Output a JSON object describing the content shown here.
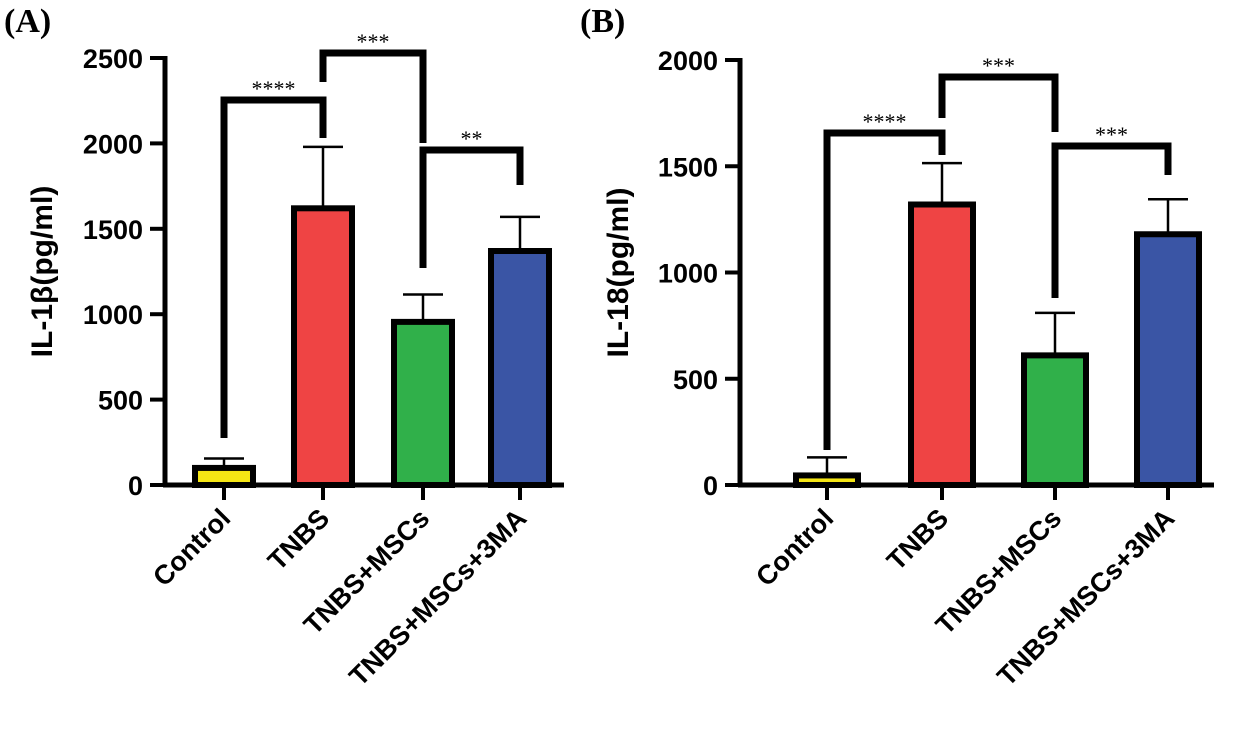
{
  "colors": {
    "Control": "#f5e614",
    "TNBS": "#ef4444",
    "TNBS+MSCs": "#30b04a",
    "TNBS+MSCs+3MA": "#3a55a5"
  },
  "chart_data": [
    {
      "type": "bar",
      "panel_label": "(A)",
      "ylabel": "IL-1β(pg/ml)",
      "categories": [
        "Control",
        "TNBS",
        "TNBS+MSCs",
        "TNBS+MSCs+3MA"
      ],
      "values": [
        100,
        1620,
        955,
        1370
      ],
      "errors": [
        55,
        360,
        160,
        200
      ],
      "ylim": [
        0,
        2500
      ],
      "yticks": [
        0,
        500,
        1000,
        1500,
        2000,
        2500
      ],
      "grid": false,
      "significance": [
        {
          "from": 0,
          "to": 1,
          "label": "****"
        },
        {
          "from": 1,
          "to": 2,
          "label": "***"
        },
        {
          "from": 2,
          "to": 3,
          "label": "**"
        }
      ]
    },
    {
      "type": "bar",
      "panel_label": "(B)",
      "ylabel": "IL-18(pg/ml)",
      "categories": [
        "Control",
        "TNBS",
        "TNBS+MSCs",
        "TNBS+MSCs+3MA"
      ],
      "values": [
        45,
        1320,
        610,
        1180
      ],
      "errors": [
        85,
        195,
        200,
        165
      ],
      "ylim": [
        0,
        2000
      ],
      "yticks": [
        0,
        500,
        1000,
        1500,
        2000
      ],
      "grid": false,
      "significance": [
        {
          "from": 0,
          "to": 1,
          "label": "****"
        },
        {
          "from": 1,
          "to": 2,
          "label": "***"
        },
        {
          "from": 2,
          "to": 3,
          "label": "***"
        }
      ]
    }
  ]
}
